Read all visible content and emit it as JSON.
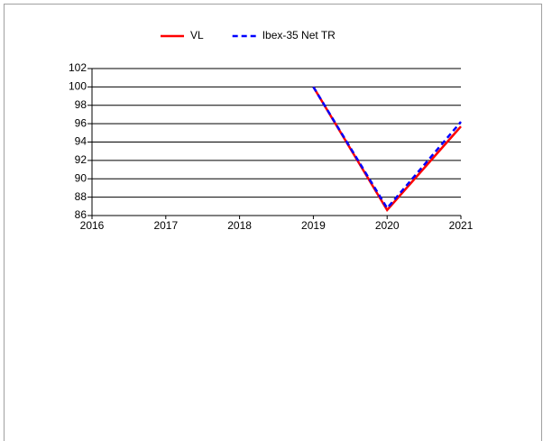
{
  "chart_data": {
    "type": "line",
    "x": [
      2019,
      2020,
      2021
    ],
    "series": [
      {
        "name": "VL",
        "color": "#ff0000",
        "style": "solid",
        "values": [
          100,
          86.6,
          95.7
        ]
      },
      {
        "name": "Ibex-35 Net TR",
        "color": "#0000ff",
        "style": "dashed",
        "values": [
          100,
          86.8,
          96.2
        ]
      }
    ],
    "xlim": [
      2016,
      2021
    ],
    "xticks": [
      2016,
      2017,
      2018,
      2019,
      2020,
      2021
    ],
    "ylim": [
      86,
      102
    ],
    "yticks": [
      86,
      88,
      90,
      92,
      94,
      96,
      98,
      100,
      102
    ],
    "grid": true,
    "legend": "top"
  }
}
